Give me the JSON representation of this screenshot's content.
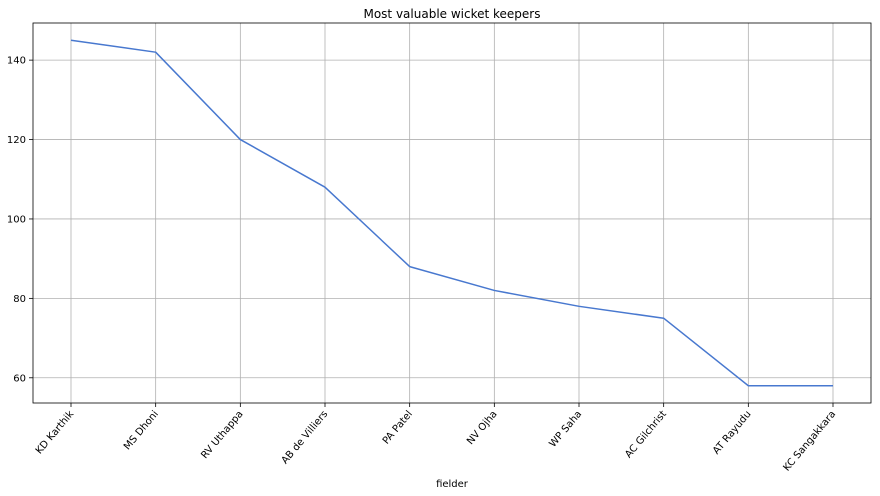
{
  "chart_data": {
    "type": "line",
    "title": "Most valuable wicket keepers",
    "xlabel": "fielder",
    "ylabel": "",
    "categories": [
      "KD Karthik",
      "MS Dhoni",
      "RV Uthappa",
      "AB de Villiers",
      "PA Patel",
      "NV Ojha",
      "WP Saha",
      "AC Gilchrist",
      "AT Rayudu",
      "KC Sangakkara"
    ],
    "values": [
      145,
      142,
      120,
      108,
      88,
      82,
      78,
      75,
      58,
      58
    ],
    "ylim": [
      53.65,
      149.35
    ],
    "yticks": [
      60,
      80,
      100,
      120,
      140
    ],
    "grid": true,
    "line_color": "#4878cf"
  }
}
